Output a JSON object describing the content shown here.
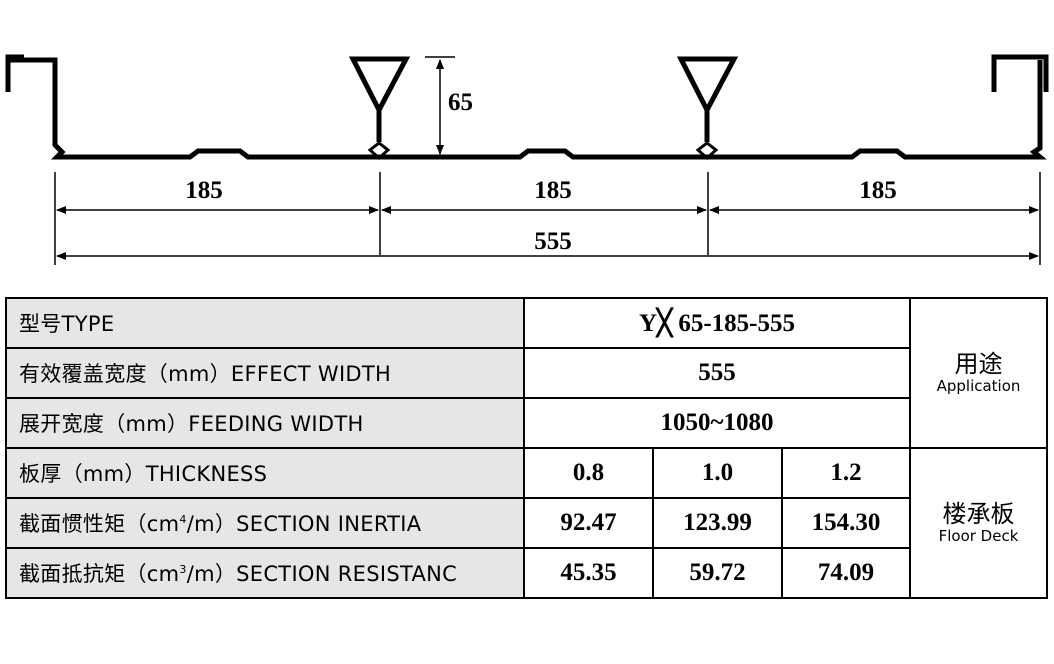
{
  "profile": {
    "height_label": "65",
    "spans": [
      "185",
      "185",
      "185"
    ],
    "total_label": "555"
  },
  "table": {
    "type": {
      "label": "型号TYPE",
      "value": "Y╳ 65-185-555"
    },
    "effect": {
      "label": "有效覆盖宽度（mm）EFFECT  WIDTH",
      "value": "555"
    },
    "feeding": {
      "label": "展开宽度（mm）FEEDING  WIDTH",
      "value": "1050~1080"
    },
    "application": {
      "cn": "用途",
      "en": "Application"
    },
    "thickness": {
      "label": "板厚（mm）THICKNESS",
      "values": [
        "0.8",
        "1.0",
        "1.2"
      ]
    },
    "inertia": {
      "label_pre": "截面惯性矩（cm",
      "sup": "4",
      "label_post": "/m）SECTION  INERTIA",
      "values": [
        "92.47",
        "123.99",
        "154.30"
      ]
    },
    "resist": {
      "label_pre": "截面抵抗矩（cm",
      "sup": "3",
      "label_post": "/m）SECTION  RESISTANC",
      "values": [
        "45.35",
        "59.72",
        "74.09"
      ]
    },
    "usage": {
      "cn": "楼承板",
      "en": "Floor Deck"
    }
  }
}
